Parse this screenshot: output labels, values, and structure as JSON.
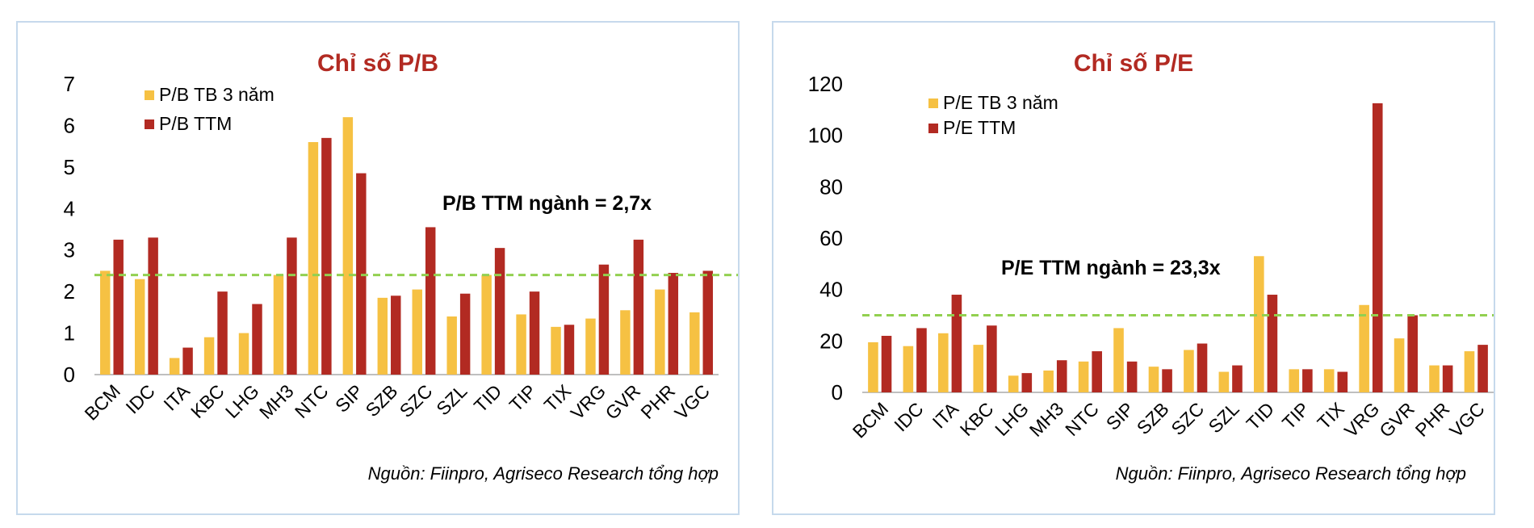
{
  "colors": {
    "avg3y": "#f6c143",
    "ttm": "#b22a22",
    "title": "#b22a22",
    "refline": "#92d050",
    "axis": "#bfbfbf",
    "border": "#c6d9ec"
  },
  "chart_data": [
    {
      "type": "bar",
      "title": "Chỉ số P/B",
      "categories": [
        "BCM",
        "IDC",
        "ITA",
        "KBC",
        "LHG",
        "MH3",
        "NTC",
        "SIP",
        "SZB",
        "SZC",
        "SZL",
        "TID",
        "TIP",
        "TIX",
        "VRG",
        "GVR",
        "PHR",
        "VGC"
      ],
      "series": [
        {
          "name": "P/B TB 3 năm",
          "values": [
            2.5,
            2.3,
            0.4,
            0.9,
            1.0,
            2.4,
            5.6,
            6.2,
            1.85,
            2.05,
            1.4,
            2.4,
            1.45,
            1.15,
            1.35,
            1.55,
            2.05,
            1.5
          ]
        },
        {
          "name": "P/B TTM",
          "values": [
            3.25,
            3.3,
            0.65,
            2.0,
            1.7,
            3.3,
            5.7,
            4.85,
            1.9,
            3.55,
            1.95,
            3.05,
            2.0,
            1.2,
            2.65,
            3.25,
            2.45,
            2.5
          ]
        }
      ],
      "yticks": [
        "0",
        "1",
        "2",
        "3",
        "4",
        "5",
        "6",
        "7"
      ],
      "ylim": [
        0,
        7
      ],
      "reference_line": 2.4,
      "annotation": "P/B TTM ngành = 2,7x",
      "legend": "top-left",
      "source": "Nguồn: Fiinpro, Agriseco Research tổng hợp"
    },
    {
      "type": "bar",
      "title": "Chỉ số P/E",
      "categories": [
        "BCM",
        "IDC",
        "ITA",
        "KBC",
        "LHG",
        "MH3",
        "NTC",
        "SIP",
        "SZB",
        "SZC",
        "SZL",
        "TID",
        "TIP",
        "TIX",
        "VRG",
        "GVR",
        "PHR",
        "VGC"
      ],
      "series": [
        {
          "name": "P/E TB 3 năm",
          "values": [
            19.5,
            18,
            23,
            18.5,
            6.5,
            8.5,
            12,
            25,
            10,
            16.5,
            8,
            53,
            9,
            9,
            34,
            21,
            10.5,
            16
          ]
        },
        {
          "name": "P/E TTM",
          "values": [
            22,
            25,
            38,
            26,
            7.5,
            12.5,
            16,
            12,
            9,
            19,
            10.5,
            38,
            9,
            8,
            112.5,
            30,
            10.5,
            18.5
          ]
        }
      ],
      "yticks": [
        "0",
        "20",
        "40",
        "60",
        "80",
        "100",
        "120"
      ],
      "ylim": [
        0,
        120
      ],
      "reference_line": 30,
      "annotation": "P/E TTM ngành = 23,3x",
      "legend": "top-left",
      "source": "Nguồn: Fiinpro, Agriseco Research tổng hợp"
    }
  ]
}
